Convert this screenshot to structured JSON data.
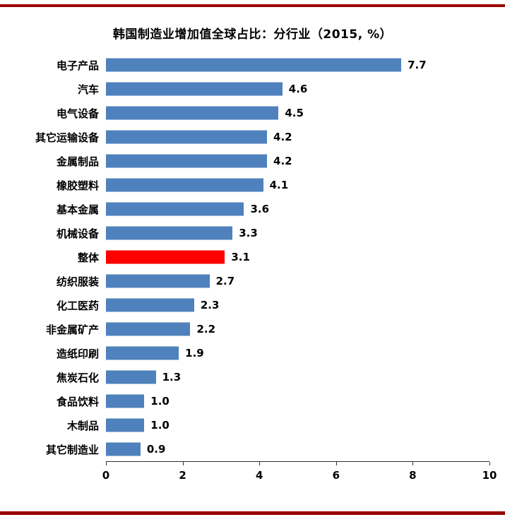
{
  "chart_data": {
    "type": "bar",
    "orientation": "horizontal",
    "title": "韩国制造业增加值全球占比：分行业（2015, %）",
    "categories": [
      "电子产品",
      "汽车",
      "电气设备",
      "其它运输设备",
      "金属制品",
      "橡胶塑料",
      "基本金属",
      "机械设备",
      "整体",
      "纺织服装",
      "化工医药",
      "非金属矿产",
      "造纸印刷",
      "焦炭石化",
      "食品饮料",
      "木制品",
      "其它制造业"
    ],
    "values": [
      7.7,
      4.6,
      4.5,
      4.2,
      4.2,
      4.1,
      3.6,
      3.3,
      3.1,
      2.7,
      2.3,
      2.2,
      1.9,
      1.3,
      1.0,
      1.0,
      0.9
    ],
    "value_labels": [
      "7.7",
      "4.6",
      "4.5",
      "4.2",
      "4.2",
      "4.1",
      "3.6",
      "3.3",
      "3.1",
      "2.7",
      "2.3",
      "2.2",
      "1.9",
      "1.3",
      "1.0",
      "1.0",
      "0.9"
    ],
    "highlight_index": 8,
    "bar_color": "#4F81BD",
    "highlight_color": "#FF0000",
    "border_rule_color": "#990000",
    "xlim": [
      0,
      10
    ],
    "x_ticks": [
      0,
      2,
      4,
      6,
      8,
      10
    ],
    "grid": false,
    "legend": "none"
  }
}
